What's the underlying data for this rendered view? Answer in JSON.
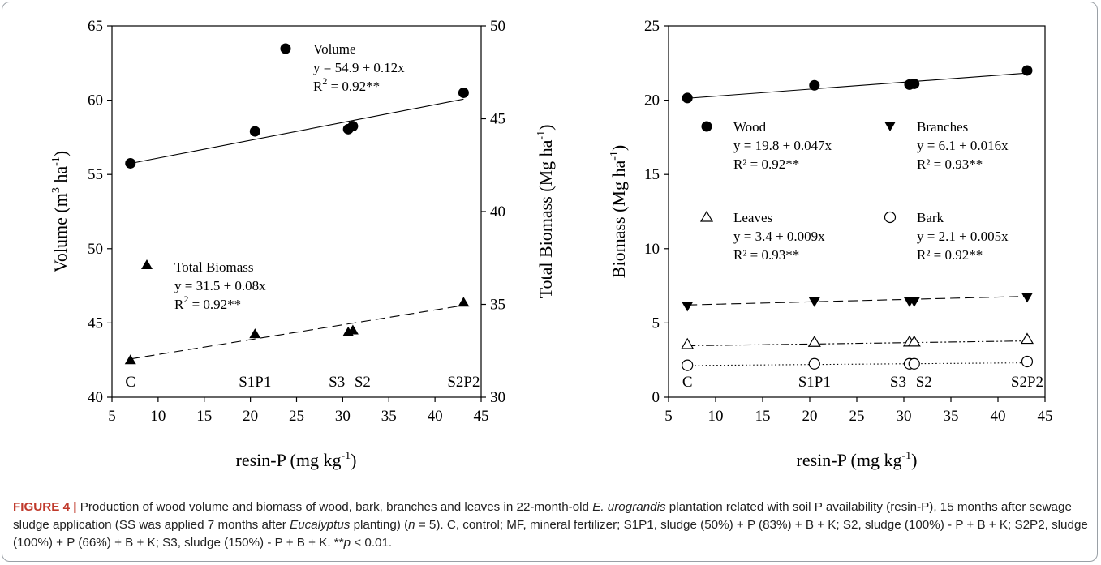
{
  "chart_data": [
    {
      "type": "scatter",
      "x_label": "resin-P (mg kg-1)",
      "y_label_left": "Volume (m3 ha-1)",
      "y_label_right": "Total Biomass (Mg ha-1)",
      "x_range": [
        5,
        45
      ],
      "y_left_range": [
        40,
        65
      ],
      "y_right_range": [
        30,
        50
      ],
      "x_ticks": [
        "5",
        "10",
        "15",
        "20",
        "25",
        "30",
        "35",
        "40",
        "45"
      ],
      "y_left_ticks": [
        "40",
        "45",
        "50",
        "55",
        "60",
        "65"
      ],
      "y_right_ticks": [
        "30",
        "35",
        "40",
        "45",
        "50"
      ],
      "treatment_labels": [
        {
          "text": "C",
          "x": 7
        },
        {
          "text": "S1P1",
          "x": 20.5
        },
        {
          "text": "S3",
          "x": 30.6
        },
        {
          "text": "S2",
          "x": 31.1
        },
        {
          "text": "S2P2",
          "x": 43.1
        }
      ],
      "series": [
        {
          "name": "Volume",
          "axis": "left",
          "marker": "filled-circle",
          "line": "solid",
          "equation": "y = 54.9 + 0.12x",
          "r2_prefix": "R",
          "r2_value": " = 0.92**",
          "fit": {
            "intercept": 54.9,
            "slope": 0.12
          },
          "points": [
            [
              7,
              55.75
            ],
            [
              20.5,
              57.9
            ],
            [
              30.6,
              58.05
            ],
            [
              31.1,
              58.25
            ],
            [
              43.1,
              60.5
            ]
          ]
        },
        {
          "name": "Total Biomass",
          "axis": "right",
          "marker": "filled-triangle",
          "line": "dashed",
          "equation": "y = 31.5 + 0.08x",
          "r2_prefix": "R",
          "r2_value": " = 0.92**",
          "fit": {
            "intercept": 31.5,
            "slope": 0.08
          },
          "points": [
            [
              7,
              32.0
            ],
            [
              20.5,
              33.4
            ],
            [
              30.6,
              33.5
            ],
            [
              31.1,
              33.6
            ],
            [
              43.1,
              35.1
            ]
          ]
        }
      ]
    },
    {
      "type": "scatter",
      "x_label": "resin-P (mg kg-1)",
      "y_label": "Biomass (Mg ha-1)",
      "x_range": [
        5,
        45
      ],
      "y_range": [
        0,
        25
      ],
      "x_ticks": [
        "5",
        "10",
        "15",
        "20",
        "25",
        "30",
        "35",
        "40",
        "45"
      ],
      "y_ticks": [
        "0",
        "5",
        "10",
        "15",
        "20",
        "25"
      ],
      "treatment_labels": [
        {
          "text": "C",
          "x": 7
        },
        {
          "text": "S1P1",
          "x": 20.5
        },
        {
          "text": "S3",
          "x": 30.6
        },
        {
          "text": "S2",
          "x": 31.1
        },
        {
          "text": "S2P2",
          "x": 43.1
        }
      ],
      "series": [
        {
          "name": "Wood",
          "marker": "filled-circle",
          "line": "solid",
          "equation": "y = 19.8 + 0.047x",
          "r2": "R² = 0.92**",
          "fit": {
            "intercept": 19.8,
            "slope": 0.047
          },
          "points": [
            [
              7,
              20.15
            ],
            [
              20.5,
              21.0
            ],
            [
              30.6,
              21.05
            ],
            [
              31.1,
              21.1
            ],
            [
              43.1,
              22.0
            ]
          ]
        },
        {
          "name": "Branches",
          "marker": "filled-down-triangle",
          "line": "dashed",
          "equation": "y = 6.1 + 0.016x",
          "r2": "R² = 0.93**",
          "fit": {
            "intercept": 6.1,
            "slope": 0.016
          },
          "points": [
            [
              7,
              6.15
            ],
            [
              20.5,
              6.45
            ],
            [
              30.6,
              6.45
            ],
            [
              31.1,
              6.45
            ],
            [
              43.1,
              6.75
            ]
          ]
        },
        {
          "name": "Leaves",
          "marker": "open-triangle",
          "line": "dash-dot-dot",
          "equation": "y = 3.4 + 0.009x",
          "r2": "R² = 0.93**",
          "fit": {
            "intercept": 3.4,
            "slope": 0.009
          },
          "points": [
            [
              7,
              3.55
            ],
            [
              20.5,
              3.7
            ],
            [
              30.6,
              3.72
            ],
            [
              31.1,
              3.72
            ],
            [
              43.1,
              3.9
            ]
          ]
        },
        {
          "name": "Bark",
          "marker": "open-circle",
          "line": "dotted",
          "equation": "y = 2.1 + 0.005x",
          "r2": "R² = 0.92**",
          "fit": {
            "intercept": 2.1,
            "slope": 0.005
          },
          "points": [
            [
              7,
              2.15
            ],
            [
              20.5,
              2.25
            ],
            [
              30.6,
              2.25
            ],
            [
              31.1,
              2.25
            ],
            [
              43.1,
              2.4
            ]
          ]
        }
      ]
    }
  ],
  "caption": {
    "figure_label": "FIGURE 4 |",
    "seg1": " Production of wood volume and biomass of wood, bark, branches and leaves in 22-month-old ",
    "species": "E. urograndis",
    "seg2": " plantation related with soil P availability (resin-P), 15 months after sewage sludge application (SS was applied 7 months after ",
    "genus": "Eucalyptus",
    "seg3": " planting) (",
    "n_var": "n",
    "seg4": " = 5). C, control; MF, mineral fertilizer; S1P1, sludge (50%) + P (83%) + B + K; S2, sludge (100%) - P + B + K; S2P2, sludge (100%) + P (66%) + B + K; S3, sludge (150%) - P + B + K. **",
    "p_var": "p",
    "seg5": " < 0.01."
  }
}
